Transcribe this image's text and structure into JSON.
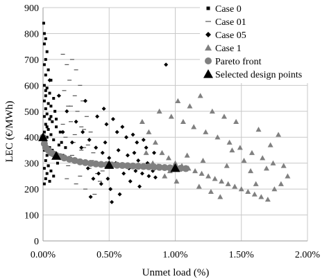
{
  "chart_data": {
    "type": "scatter",
    "title": "",
    "xlabel": "Unmet load (%)",
    "ylabel": "LEC (€/MWh)",
    "xlim": [
      0,
      0.02
    ],
    "ylim": [
      0,
      900
    ],
    "x_ticks": [
      {
        "value": 0,
        "label": "0.00%"
      },
      {
        "value": 0.005,
        "label": "0.50%"
      },
      {
        "value": 0.01,
        "label": "1.00%"
      },
      {
        "value": 0.015,
        "label": "1.50%"
      },
      {
        "value": 0.02,
        "label": "2.00%"
      }
    ],
    "y_ticks": [
      0,
      100,
      200,
      300,
      400,
      500,
      600,
      700,
      800,
      900
    ],
    "grid": {
      "horizontal": true,
      "vertical": true
    },
    "legend": {
      "placement": "top-right"
    },
    "series": [
      {
        "name": "Case 0",
        "marker": "square",
        "color": "#000000",
        "points": [
          [
            5e-05,
            840
          ],
          [
            0.0001,
            800
          ],
          [
            0.0002,
            780
          ],
          [
            0.0001,
            760
          ],
          [
            0.0003,
            730
          ],
          [
            0.0002,
            700
          ],
          [
            0.0001,
            680
          ],
          [
            0.0004,
            660
          ],
          [
            0.0002,
            640
          ],
          [
            0.0006,
            620
          ],
          [
            0.0001,
            600
          ],
          [
            0.0003,
            590
          ],
          [
            0.0005,
            570
          ],
          [
            0.0002,
            560
          ],
          [
            0.0008,
            550
          ],
          [
            0.0001,
            540
          ],
          [
            0.0004,
            530
          ],
          [
            0.0006,
            520
          ],
          [
            0.0002,
            510
          ],
          [
            0.0009,
            500
          ],
          [
            0.0003,
            490
          ],
          [
            0.0001,
            480
          ],
          [
            0.0005,
            470
          ],
          [
            0.0007,
            460
          ],
          [
            0.0002,
            450
          ],
          [
            0.001,
            440
          ],
          [
            0.0004,
            430
          ],
          [
            0.0001,
            420
          ],
          [
            0.0006,
            410
          ],
          [
            0.0003,
            400
          ],
          [
            0.0008,
            390
          ],
          [
            0.0002,
            380
          ],
          [
            0.0012,
            370
          ],
          [
            0.0005,
            360
          ],
          [
            0.0001,
            350
          ],
          [
            0.0007,
            340
          ],
          [
            0.0003,
            330
          ],
          [
            0.0009,
            320
          ],
          [
            0.0002,
            310
          ],
          [
            0.0011,
            300
          ],
          [
            0.0004,
            290
          ],
          [
            0.0001,
            280
          ],
          [
            0.0006,
            270
          ],
          [
            0.0003,
            260
          ],
          [
            0.0008,
            250
          ],
          [
            0.0002,
            240
          ],
          [
            0.0005,
            230
          ],
          [
            0.0001,
            220
          ],
          [
            0.0004,
            290
          ],
          [
            0.0007,
            350
          ],
          [
            0.0015,
            330
          ],
          [
            0.0013,
            420
          ],
          [
            0.0017,
            360
          ],
          [
            0.0002,
            580
          ],
          [
            0.0006,
            480
          ],
          [
            0.0003,
            440
          ],
          [
            0.001,
            470
          ],
          [
            0.0014,
            380
          ]
        ]
      },
      {
        "name": "Case 01",
        "marker": "dash",
        "color": "#555555",
        "points": [
          [
            0.0015,
            720
          ],
          [
            0.0022,
            700
          ],
          [
            0.0018,
            680
          ],
          [
            0.0025,
            660
          ],
          [
            0.002,
            620
          ],
          [
            0.0028,
            600
          ],
          [
            0.0016,
            580
          ],
          [
            0.0024,
            560
          ],
          [
            0.003,
            540
          ],
          [
            0.0019,
            520
          ],
          [
            0.0026,
            500
          ],
          [
            0.0033,
            480
          ],
          [
            0.0021,
            460
          ],
          [
            0.0029,
            440
          ],
          [
            0.0036,
            420
          ],
          [
            0.0017,
            400
          ],
          [
            0.0023,
            380
          ],
          [
            0.0031,
            360
          ],
          [
            0.0038,
            340
          ],
          [
            0.002,
            320
          ],
          [
            0.0027,
            300
          ],
          [
            0.0035,
            280
          ],
          [
            0.0041,
            260
          ],
          [
            0.0018,
            240
          ],
          [
            0.0025,
            220
          ],
          [
            0.0032,
            200
          ],
          [
            0.0039,
            180
          ],
          [
            0.0022,
            330
          ],
          [
            0.0029,
            350
          ],
          [
            0.0037,
            310
          ],
          [
            0.0015,
            450
          ],
          [
            0.0024,
            410
          ],
          [
            0.0034,
            370
          ],
          [
            0.0019,
            290
          ],
          [
            0.0028,
            250
          ],
          [
            0.0043,
            230
          ],
          [
            0.0012,
            560
          ],
          [
            0.0021,
            520
          ],
          [
            0.0031,
            430
          ],
          [
            0.0045,
            270
          ]
        ]
      },
      {
        "name": "Case 05",
        "marker": "diamond",
        "color": "#000000",
        "points": [
          [
            0.0005,
            620
          ],
          [
            0.0012,
            560
          ],
          [
            0.0018,
            500
          ],
          [
            0.0025,
            460
          ],
          [
            0.003,
            420
          ],
          [
            0.0035,
            390
          ],
          [
            0.004,
            360
          ],
          [
            0.0045,
            340
          ],
          [
            0.005,
            320
          ],
          [
            0.0055,
            300
          ],
          [
            0.006,
            290
          ],
          [
            0.0065,
            280
          ],
          [
            0.007,
            270
          ],
          [
            0.0075,
            260
          ],
          [
            0.008,
            250
          ],
          [
            0.0085,
            245
          ],
          [
            0.0032,
            540
          ],
          [
            0.0041,
            480
          ],
          [
            0.0048,
            450
          ],
          [
            0.0056,
            420
          ],
          [
            0.0063,
            400
          ],
          [
            0.0071,
            380
          ],
          [
            0.0078,
            360
          ],
          [
            0.0084,
            340
          ],
          [
            0.0038,
            240
          ],
          [
            0.0044,
            220
          ],
          [
            0.0051,
            200
          ],
          [
            0.0058,
            180
          ],
          [
            0.0066,
            230
          ],
          [
            0.0073,
            210
          ],
          [
            0.0027,
            310
          ],
          [
            0.0034,
            280
          ],
          [
            0.0042,
            260
          ],
          [
            0.0049,
            240
          ],
          [
            0.0057,
            350
          ],
          [
            0.0064,
            330
          ],
          [
            0.0072,
            310
          ],
          [
            0.0079,
            300
          ],
          [
            0.0087,
            290
          ],
          [
            0.0093,
            680
          ],
          [
            0.0046,
            510
          ],
          [
            0.0053,
            470
          ],
          [
            0.006,
            440
          ],
          [
            0.0068,
            410
          ],
          [
            0.0076,
            390
          ],
          [
            0.0022,
            380
          ],
          [
            0.0015,
            420
          ],
          [
            0.0036,
            170
          ],
          [
            0.0052,
            150
          ],
          [
            0.0061,
            260
          ],
          [
            0.0069,
            340
          ],
          [
            0.0083,
            270
          ],
          [
            0.0029,
            360
          ],
          [
            0.0047,
            380
          ]
        ]
      },
      {
        "name": "Case 1",
        "marker": "triangle",
        "color": "#808080",
        "points": [
          [
            0.0075,
            460
          ],
          [
            0.008,
            420
          ],
          [
            0.0085,
            380
          ],
          [
            0.009,
            340
          ],
          [
            0.0095,
            320
          ],
          [
            0.01,
            300
          ],
          [
            0.0105,
            290
          ],
          [
            0.011,
            280
          ],
          [
            0.0115,
            270
          ],
          [
            0.012,
            260
          ],
          [
            0.0125,
            250
          ],
          [
            0.013,
            240
          ],
          [
            0.0135,
            230
          ],
          [
            0.014,
            220
          ],
          [
            0.0145,
            210
          ],
          [
            0.015,
            200
          ],
          [
            0.0155,
            190
          ],
          [
            0.016,
            180
          ],
          [
            0.0165,
            170
          ],
          [
            0.017,
            160
          ],
          [
            0.0175,
            200
          ],
          [
            0.018,
            220
          ],
          [
            0.0185,
            250
          ],
          [
            0.0088,
            500
          ],
          [
            0.0097,
            480
          ],
          [
            0.0106,
            460
          ],
          [
            0.0114,
            440
          ],
          [
            0.0123,
            420
          ],
          [
            0.0132,
            400
          ],
          [
            0.0141,
            380
          ],
          [
            0.0149,
            360
          ],
          [
            0.0158,
            340
          ],
          [
            0.0166,
            320
          ],
          [
            0.0174,
            300
          ],
          [
            0.0102,
            540
          ],
          [
            0.0111,
            520
          ],
          [
            0.0128,
            500
          ],
          [
            0.0137,
            480
          ],
          [
            0.0146,
            460
          ],
          [
            0.0163,
            430
          ],
          [
            0.0178,
            410
          ],
          [
            0.0092,
            250
          ],
          [
            0.0101,
            230
          ],
          [
            0.0118,
            210
          ],
          [
            0.0127,
            190
          ],
          [
            0.0143,
            350
          ],
          [
            0.0152,
            310
          ],
          [
            0.0169,
            280
          ],
          [
            0.0083,
            300
          ],
          [
            0.0096,
            270
          ],
          [
            0.0109,
            330
          ],
          [
            0.0121,
            310
          ],
          [
            0.0139,
            290
          ],
          [
            0.0157,
            270
          ],
          [
            0.0182,
            290
          ],
          [
            0.0172,
            370
          ],
          [
            0.0119,
            560
          ],
          [
            0.0078,
            340
          ],
          [
            0.0134,
            170
          ],
          [
            0.0161,
            220
          ]
        ]
      },
      {
        "name": "Pareto front",
        "marker": "circle",
        "color": "#808080",
        "points": [
          [
            0.0,
            400
          ],
          [
            0.0001,
            375
          ],
          [
            0.0002,
            360
          ],
          [
            0.0004,
            350
          ],
          [
            0.0006,
            340
          ],
          [
            0.0008,
            335
          ],
          [
            0.001,
            330
          ],
          [
            0.0013,
            325
          ],
          [
            0.0016,
            320
          ],
          [
            0.002,
            315
          ],
          [
            0.0024,
            310
          ],
          [
            0.0028,
            305
          ],
          [
            0.0032,
            302
          ],
          [
            0.0036,
            299
          ],
          [
            0.004,
            297
          ],
          [
            0.0044,
            295
          ],
          [
            0.0048,
            294
          ],
          [
            0.0052,
            293
          ],
          [
            0.0056,
            292
          ],
          [
            0.006,
            291
          ],
          [
            0.0064,
            290
          ],
          [
            0.0068,
            289
          ],
          [
            0.0072,
            288
          ],
          [
            0.0076,
            287
          ],
          [
            0.008,
            286
          ],
          [
            0.0084,
            285
          ],
          [
            0.0088,
            284
          ],
          [
            0.0092,
            283
          ],
          [
            0.0096,
            282
          ],
          [
            0.01,
            281
          ],
          [
            0.0104,
            280
          ],
          [
            0.0108,
            279
          ]
        ]
      },
      {
        "name": "Selected design points",
        "marker": "triangle-filled",
        "color": "#000000",
        "points": [
          [
            0.0,
            400
          ],
          [
            0.001,
            328
          ],
          [
            0.005,
            293
          ],
          [
            0.01,
            281
          ]
        ]
      }
    ]
  }
}
